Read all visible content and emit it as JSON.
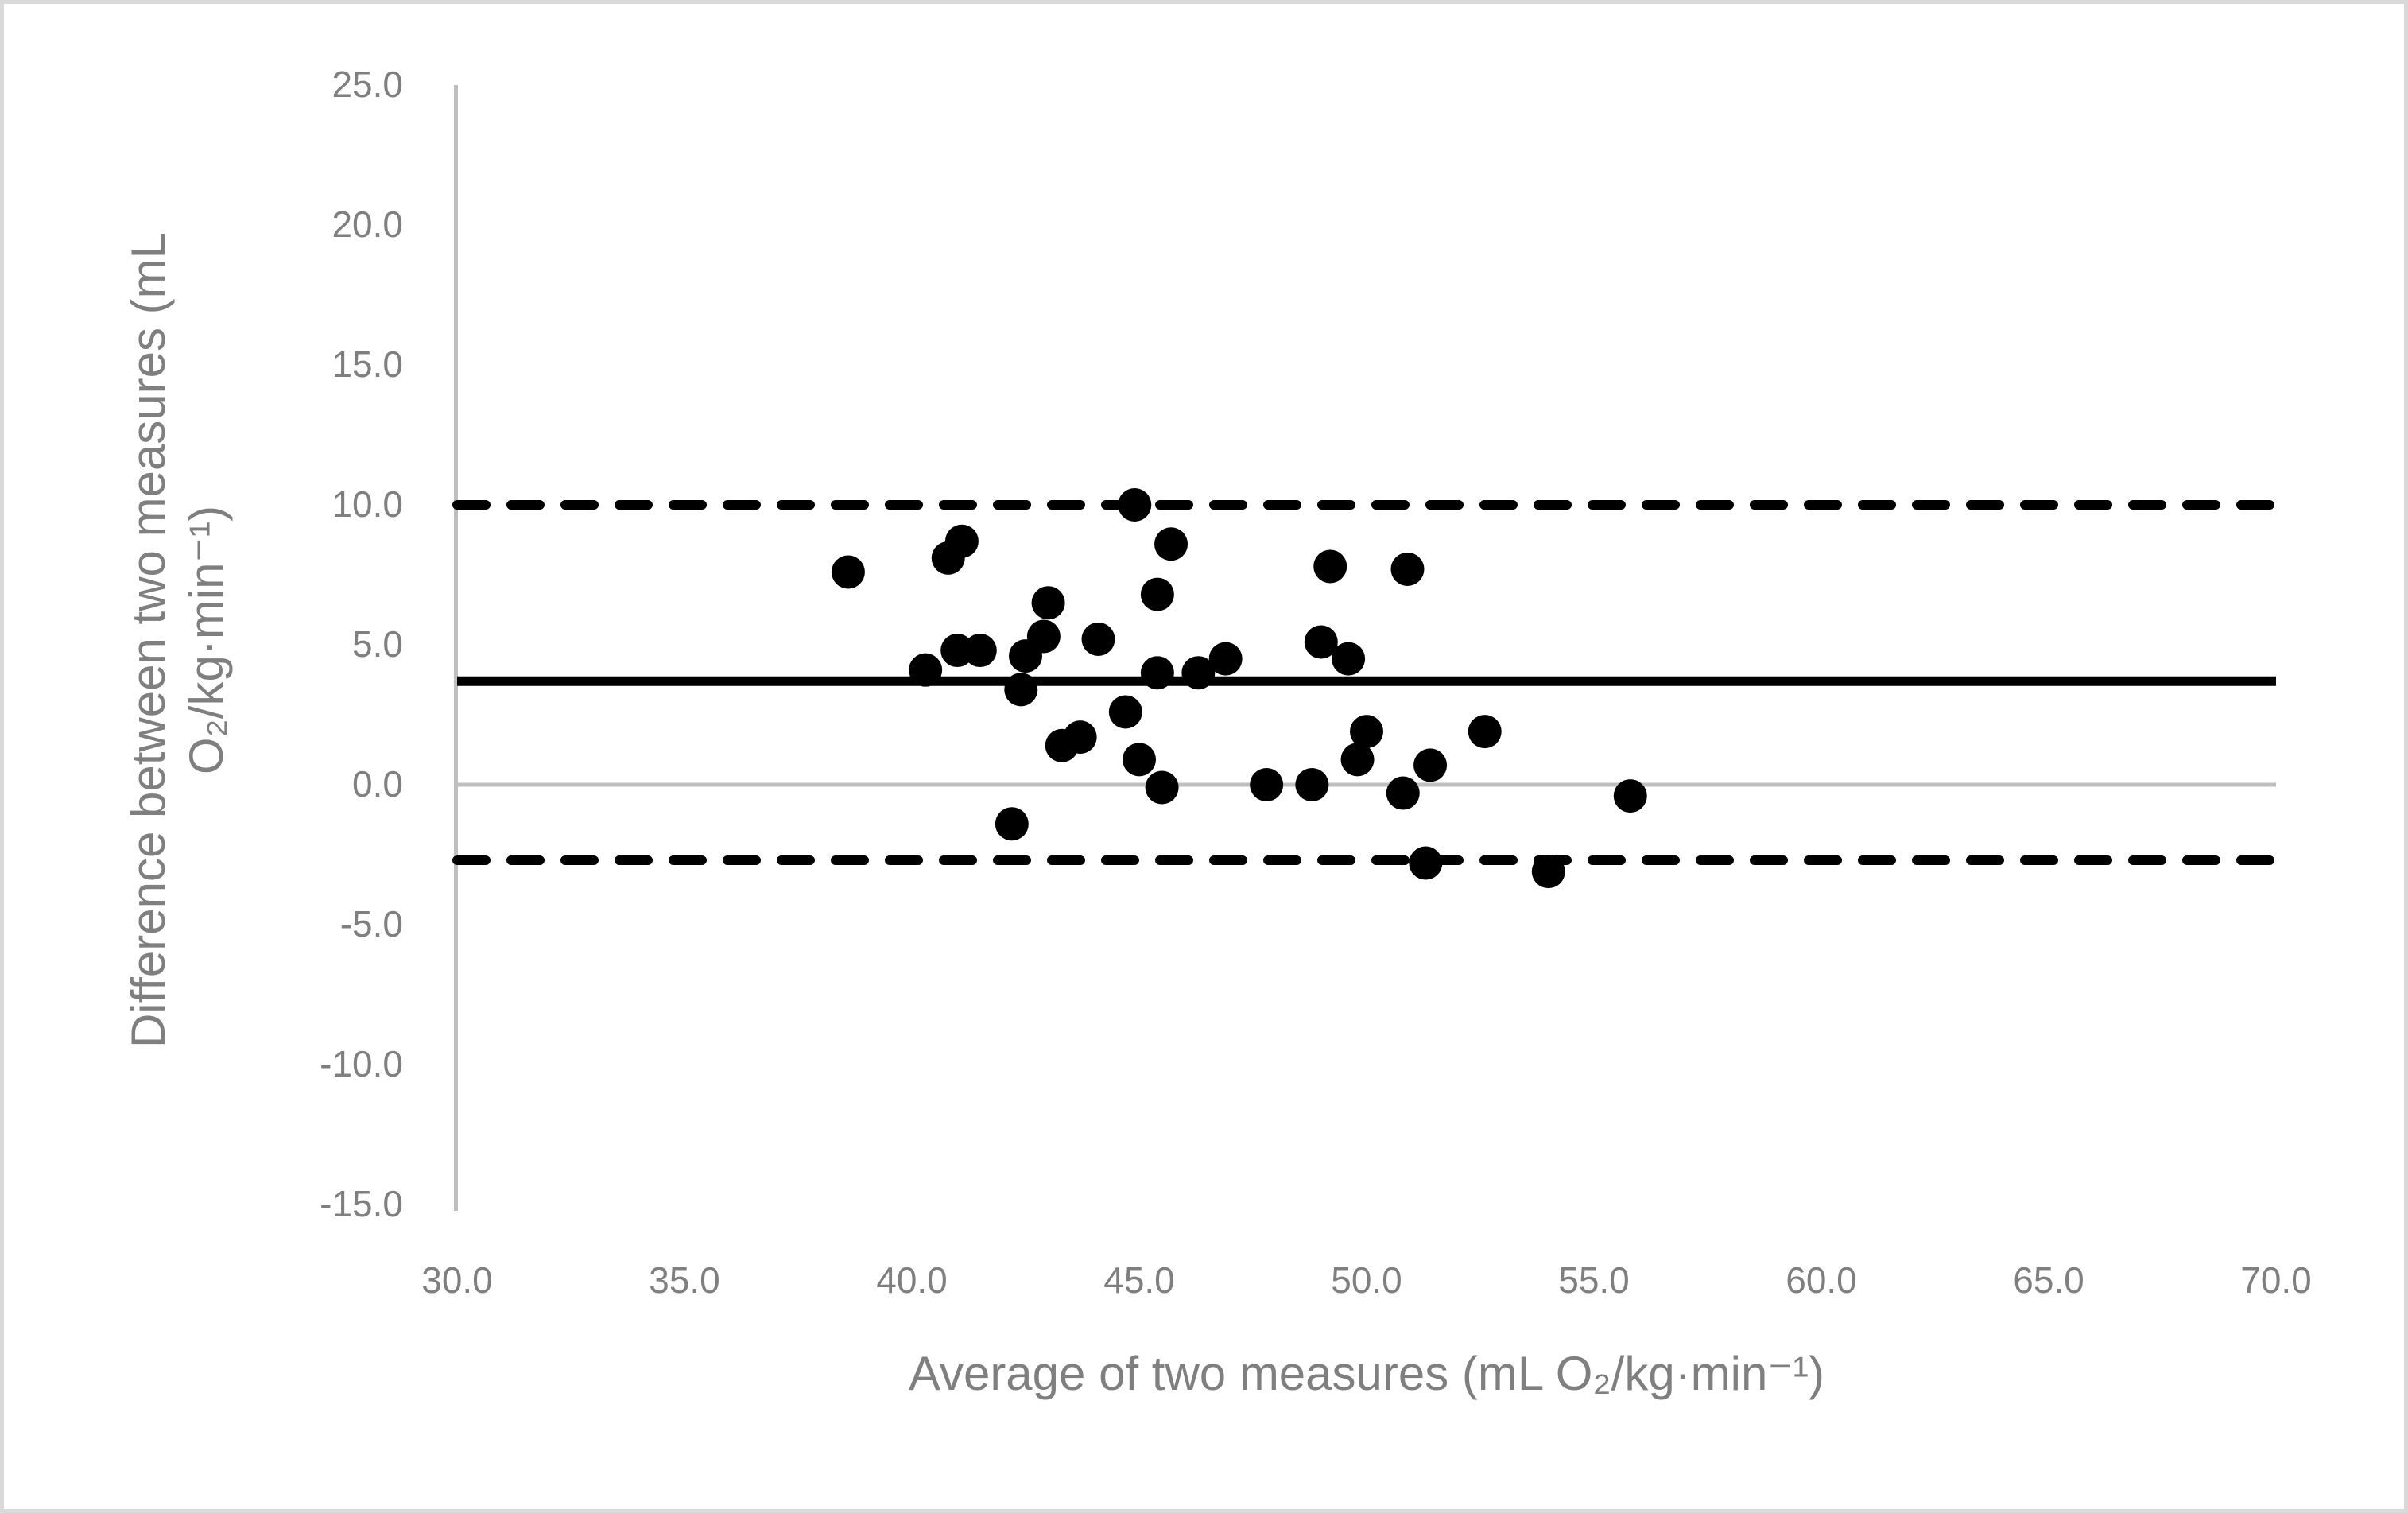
{
  "figure": {
    "background": "#ffffff",
    "border_color": "#d9d9d9",
    "text_color": "#7f7f7f",
    "axis_color": "#bfbfbf",
    "data_color": "#000000"
  },
  "chart_data": {
    "type": "scatter",
    "title": "",
    "xlabel": "Average of two measures (mL O₂/kg·min⁻¹)",
    "ylabel_line1": "Difference between two measures (mL",
    "ylabel_line2": "O₂/kg·min⁻¹)",
    "xlim": [
      30.0,
      70.0
    ],
    "ylim": [
      -15.0,
      25.0
    ],
    "x_ticks": [
      "30.0",
      "35.0",
      "40.0",
      "45.0",
      "50.0",
      "55.0",
      "60.0",
      "65.0",
      "70.0"
    ],
    "y_ticks": [
      "25.0",
      "20.0",
      "15.0",
      "10.0",
      "5.0",
      "0.0",
      "-5.0",
      "-10.0",
      "-15.0"
    ],
    "legend": "none",
    "grid": "zero-line-only",
    "reference_lines": {
      "mean_bias": 3.7,
      "upper_loa": 10.0,
      "lower_loa": -2.7,
      "zero_line": 0.0
    },
    "marker": {
      "shape": "circle",
      "radius_px": 21,
      "color": "#000000"
    },
    "points": [
      [
        38.6,
        7.6
      ],
      [
        40.8,
        8.1
      ],
      [
        41.1,
        8.7
      ],
      [
        44.9,
        10.0
      ],
      [
        45.7,
        8.6
      ],
      [
        45.4,
        6.8
      ],
      [
        43.0,
        6.5
      ],
      [
        42.9,
        5.3
      ],
      [
        42.5,
        4.6
      ],
      [
        42.4,
        3.4
      ],
      [
        41.0,
        4.8
      ],
      [
        41.5,
        4.8
      ],
      [
        40.3,
        4.1
      ],
      [
        44.1,
        5.2
      ],
      [
        46.3,
        4.0
      ],
      [
        46.9,
        4.5
      ],
      [
        45.4,
        4.0
      ],
      [
        44.7,
        2.6
      ],
      [
        43.3,
        1.4
      ],
      [
        43.7,
        1.7
      ],
      [
        45.0,
        0.9
      ],
      [
        45.5,
        -0.1
      ],
      [
        42.2,
        -1.4
      ],
      [
        49.2,
        7.8
      ],
      [
        50.9,
        7.7
      ],
      [
        49.0,
        5.1
      ],
      [
        49.6,
        4.5
      ],
      [
        50.0,
        1.9
      ],
      [
        49.8,
        0.9
      ],
      [
        47.8,
        0.0
      ],
      [
        48.8,
        0.0
      ],
      [
        50.8,
        -0.3
      ],
      [
        51.4,
        0.7
      ],
      [
        52.6,
        1.9
      ],
      [
        55.8,
        -0.4
      ],
      [
        51.3,
        -2.8
      ],
      [
        54.0,
        -3.1
      ]
    ]
  }
}
